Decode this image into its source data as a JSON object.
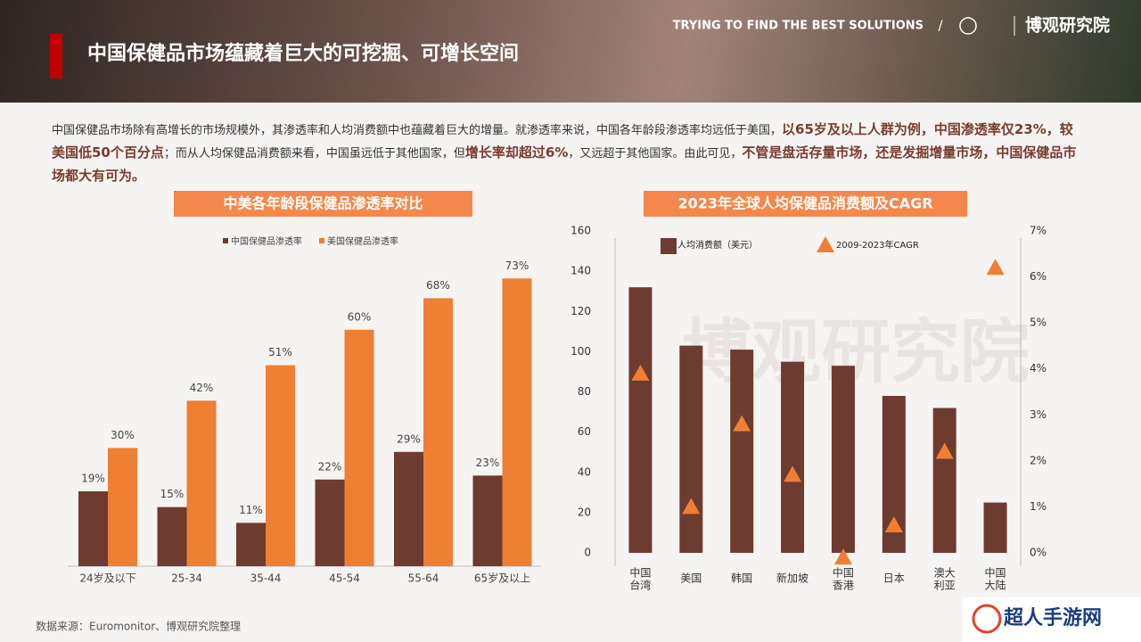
{
  "header": {
    "title": "中国保健品市场蕴藏着巨大的可挖掘、可增长空间",
    "tagline": "TRYING TO FIND THE BEST SOLUTIONS",
    "separator": "/",
    "brand": "博观研究院"
  },
  "paragraph": [
    {
      "text": "中国保健品市场除有高增长的市场规模外，其渗透率和人均消费额中也蕴藏着巨大的增量。就渗透率来说，中国各年龄段渗透率均远低于美国，",
      "emphasis": false
    },
    {
      "text": "以65岁及以上人群为例，中国渗透率仅23%，较美国低50个百分点",
      "emphasis": true
    },
    {
      "text": "；而从人均保健品消费额来看，中国虽远低于其他国家，但",
      "emphasis": false
    },
    {
      "text": "增长率却超过6%",
      "emphasis": true
    },
    {
      "text": "，又远超于其他国家。由此可见，",
      "emphasis": false
    },
    {
      "text": "不管是盘活存量市场，还是发掘增量市场，中国保健品市场都大有可为。",
      "emphasis": true
    }
  ],
  "source": "数据来源：Euromonitor、博观研究院整理",
  "watermark": "超人手游网",
  "chart_data": [
    {
      "type": "bar",
      "title": "中美各年龄段保健品渗透率对比",
      "categories": [
        "24岁及以下",
        "25-34",
        "35-44",
        "45-54",
        "55-64",
        "65岁及以上"
      ],
      "series": [
        {
          "name": "中国保健品渗透率",
          "color": "#6e3b30",
          "values": [
            19,
            15,
            11,
            22,
            29,
            23
          ],
          "value_labels": [
            "19%",
            "15%",
            "11%",
            "22%",
            "29%",
            "23%"
          ]
        },
        {
          "name": "美国保健品渗透率",
          "color": "#ef7f33",
          "values": [
            30,
            42,
            51,
            60,
            68,
            73
          ],
          "value_labels": [
            "30%",
            "42%",
            "51%",
            "60%",
            "68%",
            "73%"
          ]
        }
      ]
    },
    {
      "type": "bar",
      "title": "2023年全球人均保健品消费额及CAGR",
      "categories": [
        [
          "中国",
          "台湾"
        ],
        [
          "美国"
        ],
        [
          "韩国"
        ],
        [
          "新加坡"
        ],
        [
          "中国",
          "香港"
        ],
        [
          "日本"
        ],
        [
          "澳大",
          "利亚"
        ],
        [
          "中国",
          "大陆"
        ]
      ],
      "series": [
        {
          "name": "人均消费额（美元）",
          "color": "#6e3b30",
          "values": [
            132,
            103,
            101,
            95,
            93,
            78,
            72,
            25
          ]
        },
        {
          "name": "2009-2023年CAGR",
          "color": "#ef7f33",
          "axis": "y2",
          "marker": "triangle",
          "values": [
            3.9,
            1.0,
            2.8,
            1.7,
            -0.1,
            0.6,
            2.2,
            6.2
          ]
        }
      ],
      "ylim": [
        0,
        160
      ],
      "yticks": [
        0,
        20,
        40,
        60,
        80,
        100,
        120,
        140,
        160
      ],
      "y2lim": [
        0,
        7
      ],
      "y2ticks": [
        {
          "value": 0,
          "label": "0%"
        },
        {
          "value": 1,
          "label": "1%"
        },
        {
          "value": 2,
          "label": "2%"
        },
        {
          "value": 3,
          "label": "3%"
        },
        {
          "value": 4,
          "label": "4%"
        },
        {
          "value": 5,
          "label": "5%"
        },
        {
          "value": 6,
          "label": "6%"
        },
        {
          "value": 7,
          "label": "7%"
        }
      ]
    }
  ]
}
